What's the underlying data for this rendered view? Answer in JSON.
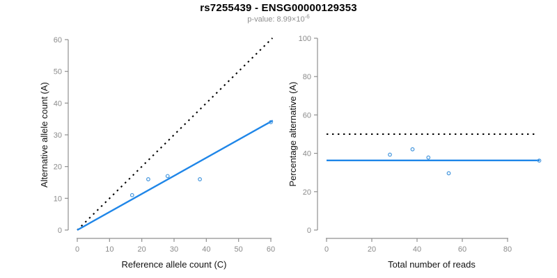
{
  "header": {
    "title": "rs7255439 - ENSG00000129353",
    "pvalue_label": "p-value: 8.99×10",
    "pvalue_exponent": "-6"
  },
  "colors": {
    "accent_blue": "#1f86e8",
    "point_blue": "#4496dd",
    "identity_black": "#000000",
    "axis_gray": "#8f8f8f",
    "tick_label_gray": "#8a8a8a",
    "axis_title_color": "#111111"
  },
  "chart_data": [
    {
      "type": "scatter",
      "panel": "allele-counts",
      "xlabel": "Reference allele count (C)",
      "ylabel": "Alternative allele count (A)",
      "xlim": [
        0,
        60
      ],
      "ylim": [
        0,
        60
      ],
      "grid": false,
      "xticks": [
        0,
        10,
        20,
        30,
        40,
        50,
        60
      ],
      "yticks": [
        0,
        10,
        20,
        30,
        40,
        50,
        60
      ],
      "points": [
        [
          17,
          11
        ],
        [
          22,
          16
        ],
        [
          28,
          17
        ],
        [
          38,
          16
        ],
        [
          60,
          34
        ]
      ],
      "lines": [
        {
          "name": "identity-line",
          "style": "dotted",
          "color": "identity_black",
          "from": [
            0,
            0
          ],
          "to": [
            60.5,
            60.5
          ]
        },
        {
          "name": "fit-line",
          "style": "solid",
          "color": "accent_blue",
          "from": [
            0,
            0
          ],
          "to": [
            60.6,
            34.5
          ]
        }
      ]
    },
    {
      "type": "scatter",
      "panel": "percentage-alternative",
      "xlabel": "Total number of reads",
      "ylabel": "Percentage alternative (A)",
      "xlim": [
        0,
        94
      ],
      "ylim": [
        0,
        100
      ],
      "grid": false,
      "xticks": [
        0,
        20,
        40,
        60,
        80
      ],
      "yticks": [
        0,
        20,
        40,
        60,
        80,
        100
      ],
      "points": [
        [
          28,
          39.3
        ],
        [
          38,
          42.1
        ],
        [
          45,
          37.8
        ],
        [
          54,
          29.6
        ],
        [
          94,
          36.2
        ]
      ],
      "lines": [
        {
          "name": "threshold-line-50pct",
          "style": "dotted",
          "color": "identity_black",
          "from": [
            0,
            50
          ],
          "to": [
            92,
            50
          ]
        },
        {
          "name": "mean-percentage-line",
          "style": "solid",
          "color": "accent_blue",
          "from": [
            0,
            36.3
          ],
          "to": [
            94.2,
            36.3
          ]
        }
      ]
    }
  ]
}
